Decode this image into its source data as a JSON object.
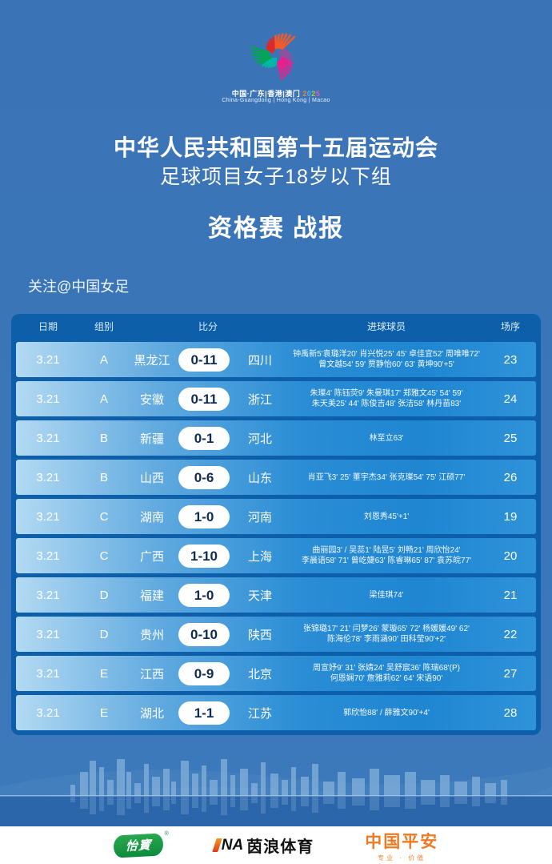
{
  "colors": {
    "page_bg": "#3a76b9",
    "table_bg": "#0d5fa9",
    "row_gradient_left": "#b3daf3",
    "row_gradient_right": "#2f93d9",
    "score_text": "#0d2c55",
    "yibao_green": "#0c8c3c",
    "ina_orange": "#e23c15",
    "pingan_orange": "#ef7a24"
  },
  "logo": {
    "caption_cn": "中国·广东|香港|澳门",
    "caption_year": "2025",
    "caption_en": "China-Guangdong | Hong Kong | Macao"
  },
  "header": {
    "title": "中华人民共和国第十五届运动会",
    "subtitle": "足球项目女子18岁以下组",
    "report_title": "资格赛 战报",
    "follow": "关注@中国女足"
  },
  "table": {
    "columns": {
      "date": "日期",
      "group": "组别",
      "score": "比分",
      "scorers": "进球球员",
      "seq": "场序"
    },
    "rows": [
      {
        "date": "3.21",
        "group": "A",
        "home": "黑龙江",
        "score": "0-11",
        "away": "四川",
        "scorers1": "钟禹新5'袁璐洋20' 肖兴悦25' 45' 卓佳宜52' 周唯唯72'",
        "scorers2": "曾文越54' 59' 贾静怡60' 63' 黄坤90'+5'",
        "match": "23"
      },
      {
        "date": "3.21",
        "group": "A",
        "home": "安徽",
        "score": "0-11",
        "away": "浙江",
        "scorers1": "朱璨4' 陈钰荧9' 朱曼琪17' 郑雅文45' 54' 59'",
        "scorers2": "朱天美25' 44' 陈俊吉48' 张洁58' 林丹苗83'",
        "match": "24"
      },
      {
        "date": "3.21",
        "group": "B",
        "home": "新疆",
        "score": "0-1",
        "away": "河北",
        "scorers1": "林至立63'",
        "scorers2": "",
        "match": "25"
      },
      {
        "date": "3.21",
        "group": "B",
        "home": "山西",
        "score": "0-6",
        "away": "山东",
        "scorers1": "肖亚飞3' 25' 董宇杰34' 张克璨54' 75' 江硕77'",
        "scorers2": "",
        "match": "26"
      },
      {
        "date": "3.21",
        "group": "C",
        "home": "湖南",
        "score": "1-0",
        "away": "河南",
        "scorers1": "刘恩秀45'+1'",
        "scorers2": "",
        "match": "19"
      },
      {
        "date": "3.21",
        "group": "C",
        "home": "广西",
        "score": "1-10",
        "away": "上海",
        "scorers1": "曲丽园3' / 吴蕊1' 陆昱5' 刘畅21' 周欣怡24'",
        "scorers2": "李晨语58' 71' 曾屹婕63' 陈睿琳65' 87' 袁苏皖77'",
        "match": "20"
      },
      {
        "date": "3.21",
        "group": "D",
        "home": "福建",
        "score": "1-0",
        "away": "天津",
        "scorers1": "梁佳琪74'",
        "scorers2": "",
        "match": "21"
      },
      {
        "date": "3.21",
        "group": "D",
        "home": "贵州",
        "score": "0-10",
        "away": "陕西",
        "scorers1": "张锦璐17' 21' 闫梦26' 蒙璇65' 72' 杨媛媛49' 62'",
        "scorers2": "陈海伦78' 李雨涵90' 田科莹90'+2'",
        "match": "22"
      },
      {
        "date": "3.21",
        "group": "E",
        "home": "江西",
        "score": "0-9",
        "away": "北京",
        "scorers1": "周宣妤9' 31' 张婧24' 吴舒宸36' 陈瑞68'(P)",
        "scorers2": "何恩娴70' 詹雅莉62' 64' 宋语90'",
        "match": "27"
      },
      {
        "date": "3.21",
        "group": "E",
        "home": "湖北",
        "score": "1-1",
        "away": "江苏",
        "scorers1": "郭欣怡88' / 薛雅文90'+4'",
        "scorers2": "",
        "match": "28"
      }
    ]
  },
  "footer": {
    "yibao": "怡寳",
    "yibao_reg": "®",
    "ina_na": "NA",
    "ina_cn": "茵浪体育",
    "pingan": "中国平安",
    "pingan_sub": "专业 · 价值"
  }
}
